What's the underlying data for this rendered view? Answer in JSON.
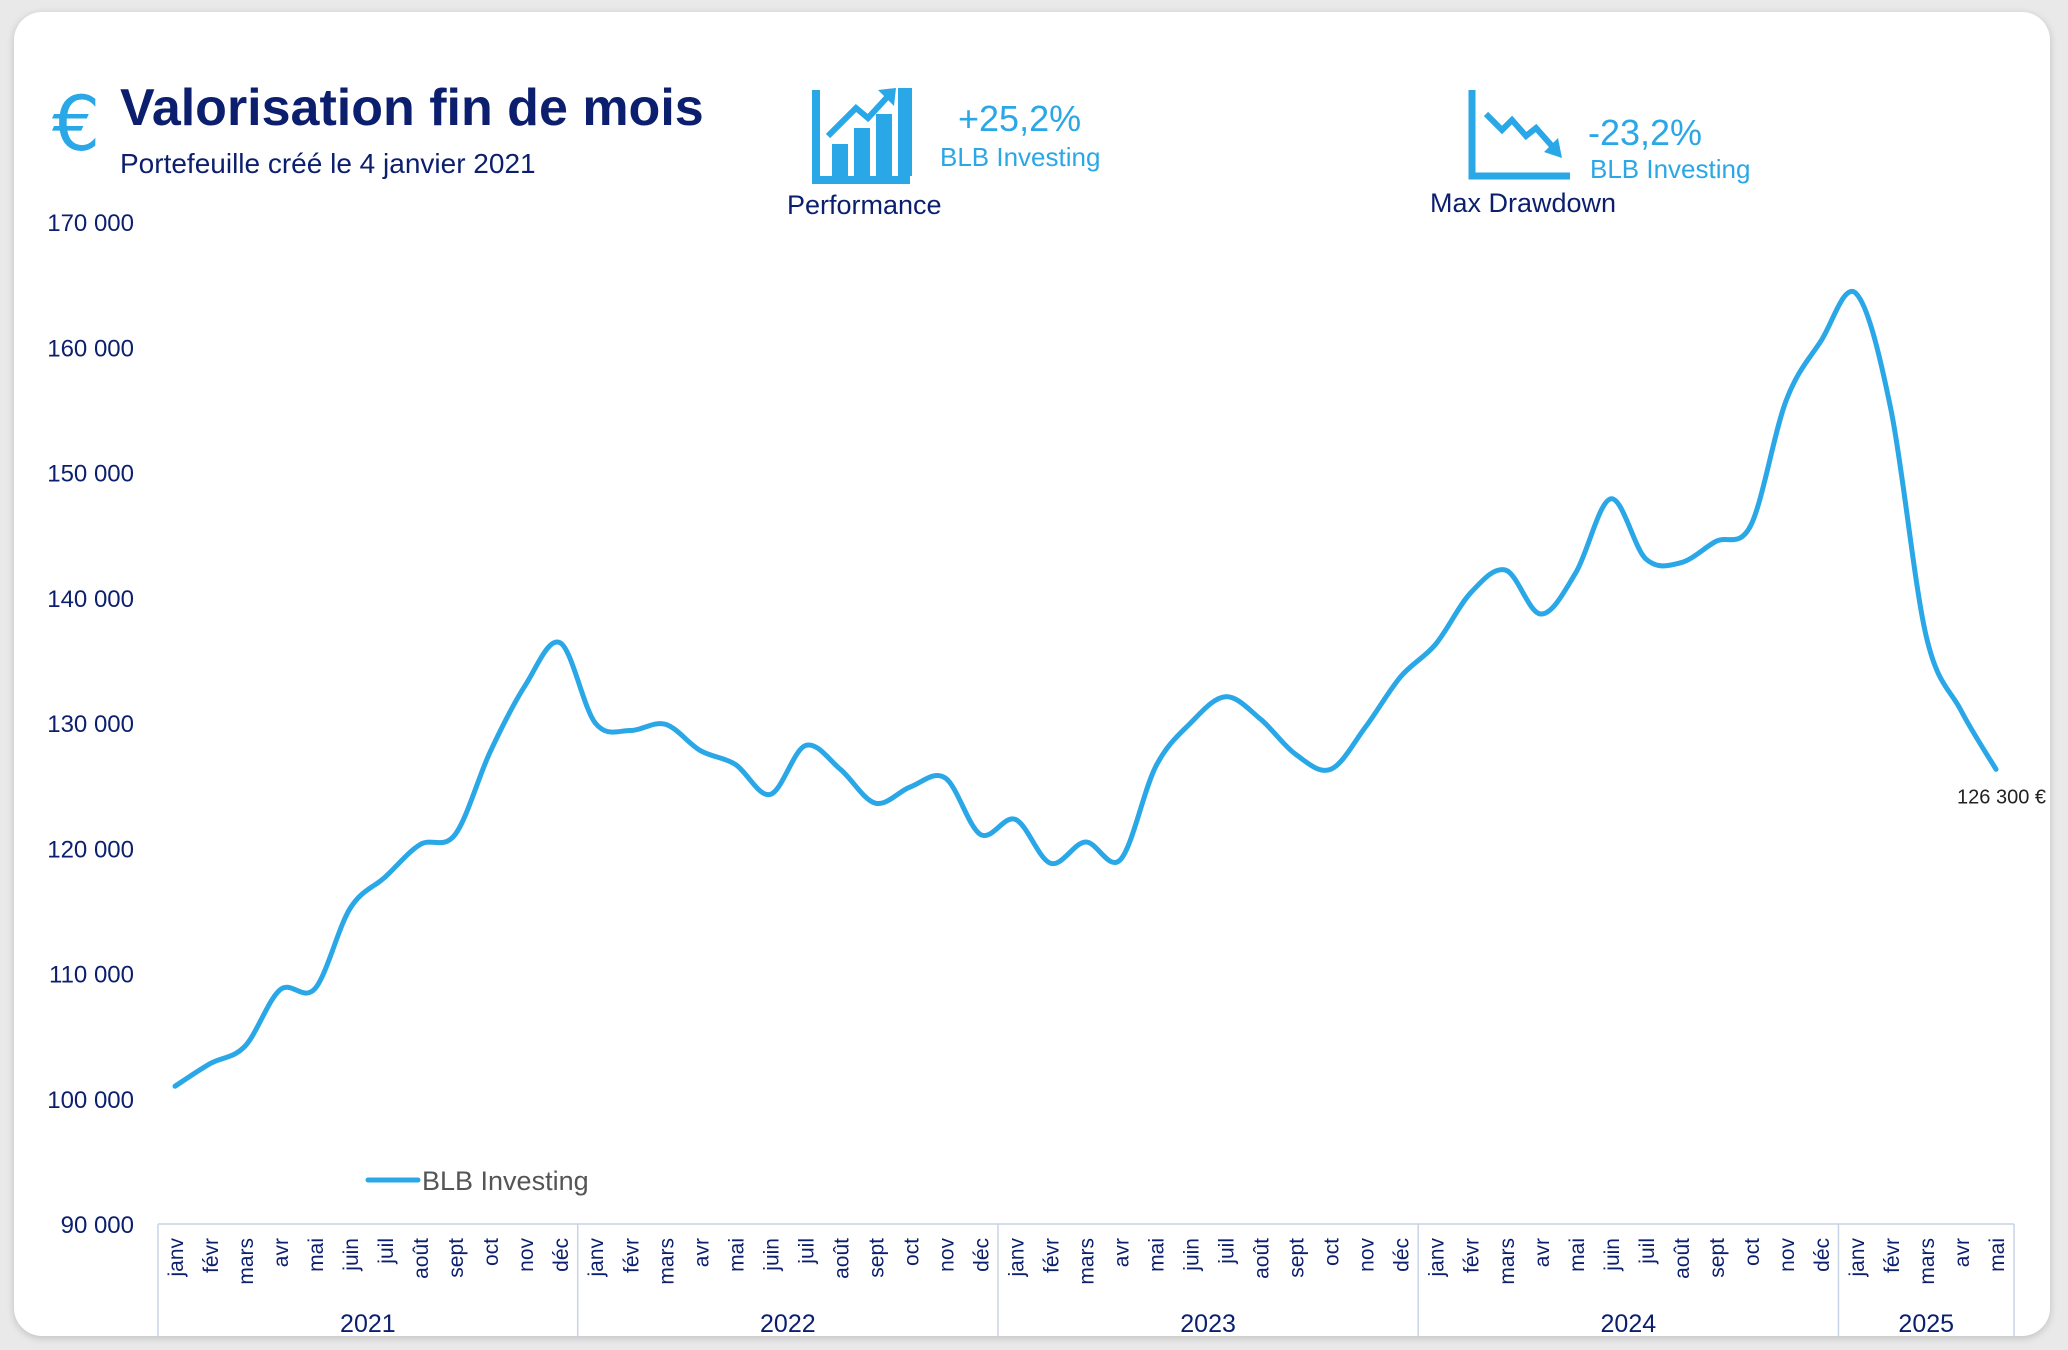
{
  "header": {
    "currency_symbol": "€",
    "title": "Valorisation fin de mois",
    "subtitle": "Portefeuille créé le 4 janvier 2021"
  },
  "kpis": {
    "performance": {
      "value": "+25,2%",
      "source": "BLB Investing",
      "label": "Performance",
      "icon": "bar-chart-up-icon"
    },
    "drawdown": {
      "value": "-23,2%",
      "source": "BLB Investing",
      "label": "Max Drawdown",
      "icon": "trend-down-icon"
    }
  },
  "colors": {
    "line": "#2aa7e6",
    "title": "#0b1f6e",
    "axis_text": "#0b1f6e"
  },
  "chart_data": {
    "type": "line",
    "title": "Valorisation fin de mois",
    "ylim": [
      90000,
      170000
    ],
    "yticks": [
      90000,
      100000,
      110000,
      120000,
      130000,
      140000,
      150000,
      160000,
      170000
    ],
    "ytick_labels": [
      "90 000",
      "100 000",
      "110 000",
      "120 000",
      "130 000",
      "140 000",
      "150 000",
      "160 000",
      "170 000"
    ],
    "grid": false,
    "legend": "bottom-left",
    "x": [
      "janv",
      "févr",
      "mars",
      "avr",
      "mai",
      "juin",
      "juil",
      "août",
      "sept",
      "oct",
      "nov",
      "déc",
      "janv",
      "févr",
      "mars",
      "avr",
      "mai",
      "juin",
      "juil",
      "août",
      "sept",
      "oct",
      "nov",
      "déc",
      "janv",
      "févr",
      "mars",
      "avr",
      "mai",
      "juin",
      "juil",
      "août",
      "sept",
      "oct",
      "nov",
      "déc",
      "janv",
      "févr",
      "mars",
      "avr",
      "mai",
      "juin",
      "juil",
      "août",
      "sept",
      "oct",
      "nov",
      "déc",
      "janv",
      "févr",
      "mars",
      "avr",
      "mai"
    ],
    "years": [
      {
        "label": "2021",
        "months": 12
      },
      {
        "label": "2022",
        "months": 12
      },
      {
        "label": "2023",
        "months": 12
      },
      {
        "label": "2024",
        "months": 12
      },
      {
        "label": "2025",
        "months": 5
      }
    ],
    "series": [
      {
        "name": "BLB Investing",
        "values": [
          101000,
          102800,
          104200,
          108700,
          108800,
          115200,
          117700,
          120300,
          121100,
          127700,
          133000,
          136400,
          130000,
          129400,
          129900,
          127800,
          126700,
          124300,
          128200,
          126300,
          123600,
          124900,
          125600,
          121100,
          122300,
          118800,
          120500,
          119100,
          126500,
          130000,
          132100,
          130300,
          127500,
          126300,
          129700,
          133700,
          136300,
          140400,
          142200,
          138700,
          142000,
          147900,
          143100,
          142800,
          144500,
          145800,
          155700,
          160500,
          164300,
          155000,
          137000,
          131000,
          126300
        ]
      }
    ],
    "last_value_label": "126 300 €"
  }
}
